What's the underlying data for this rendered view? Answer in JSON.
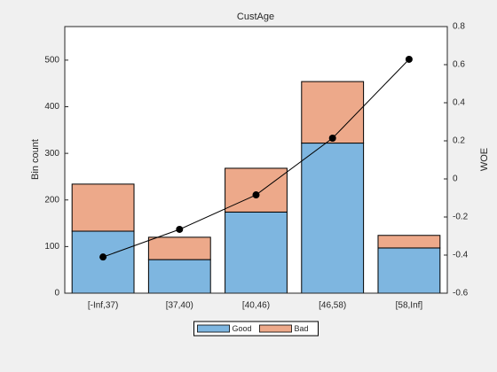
{
  "chart_data": {
    "type": "bar",
    "stacked": true,
    "title": "CustAge",
    "ylabel": "Bin count",
    "y2label": "WOE",
    "categories": [
      "[-Inf,37)",
      "[37,40)",
      "[40,46)",
      "[46,58)",
      "[58,Inf]"
    ],
    "series": [
      {
        "name": "Good",
        "color": "#7eb6e0",
        "values": [
          133,
          72,
          174,
          322,
          97
        ]
      },
      {
        "name": "Bad",
        "color": "#eda98a",
        "values": [
          101,
          48,
          94,
          132,
          27
        ]
      },
      {
        "axis": "y2",
        "color": "#000000",
        "values": [
          -0.41,
          -0.265,
          -0.084,
          0.214,
          0.628
        ]
      }
    ],
    "ylim": [
      0,
      572
    ],
    "yticks": [
      0,
      100,
      200,
      300,
      400,
      500
    ],
    "y2lim": [
      -0.6,
      0.8
    ],
    "y2ticks": [
      -0.6,
      -0.4,
      -0.2,
      0,
      0.2,
      0.4,
      0.6,
      0.8
    ],
    "legend": "bottom"
  }
}
